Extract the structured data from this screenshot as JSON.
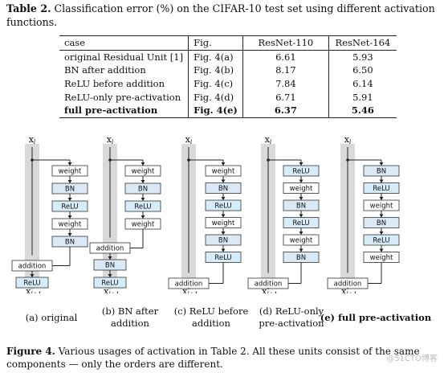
{
  "table_caption": {
    "label": "Table 2.",
    "text": "Classification error (%) on the CIFAR-10 test set using different activation functions."
  },
  "table": {
    "headers": [
      "case",
      "Fig.",
      "ResNet-110",
      "ResNet-164"
    ],
    "rows": [
      [
        "original Residual Unit [1]",
        "Fig. 4(a)",
        "6.61",
        "5.93"
      ],
      [
        "BN after addition",
        "Fig. 4(b)",
        "8.17",
        "6.50"
      ],
      [
        "ReLU before addition",
        "Fig. 4(c)",
        "7.84",
        "6.14"
      ],
      [
        "ReLU-only pre-activation",
        "Fig. 4(d)",
        "6.71",
        "5.91"
      ],
      [
        "full pre-activation",
        "Fig. 4(e)",
        "6.37",
        "5.46"
      ]
    ]
  },
  "figure": {
    "x_in": "x",
    "x_in_sub": "l",
    "x_out": "x",
    "x_out_sub": "l+1",
    "block_labels": {
      "weight": "weight",
      "bn": "BN",
      "relu": "ReLU",
      "addition": "addition"
    },
    "units": [
      {
        "label_line1": "(a) original",
        "label_line2": ""
      },
      {
        "label_line1": "(b) BN after",
        "label_line2": "addition"
      },
      {
        "label_line1": "(c) ReLU before",
        "label_line2": "addition"
      },
      {
        "label_line1": "(d) ReLU-only",
        "label_line2": "pre-activation"
      },
      {
        "label_line1": "(e) full pre-activation",
        "label_line2": ""
      }
    ]
  },
  "figure_caption": {
    "label": "Figure 4.",
    "text": "Various usages of activation in Table 2. All these units consist of the same components — only the orders are different."
  },
  "watermark": "@51CTO博客",
  "colors": {
    "weight_fill": "#ffffff",
    "bn_fill": "#dbe9f6",
    "relu_fill": "#d6ecf8",
    "highway": "#d9d9d9"
  }
}
